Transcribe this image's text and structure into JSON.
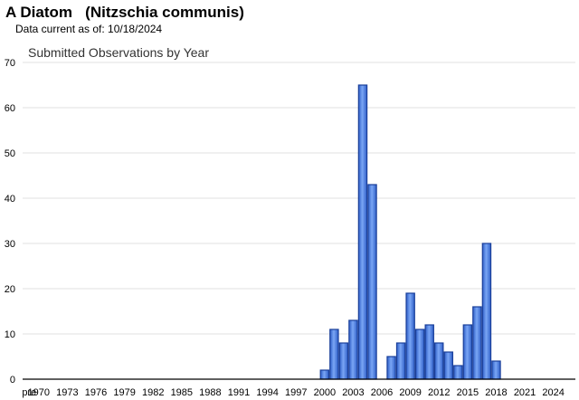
{
  "header": {
    "species_title": "A Diatom   (Nitzschia communis)",
    "data_current": "Data current as of: 10/18/2024"
  },
  "chart_data": {
    "type": "bar",
    "title": "Submitted Observations by Year",
    "xlabel": "",
    "ylabel": "",
    "ylim": [
      0,
      70
    ],
    "yticks": [
      0,
      10,
      20,
      30,
      40,
      50,
      60,
      70
    ],
    "grid": true,
    "bar_color": "#4a7fe0",
    "bar_border_color": "#1a3f9a",
    "x_tick_labels": [
      "pre",
      "1970",
      "1973",
      "1976",
      "1979",
      "1982",
      "1985",
      "1988",
      "1991",
      "1994",
      "1997",
      "2000",
      "2003",
      "2006",
      "2009",
      "2012",
      "2015",
      "2018",
      "2021",
      "2024"
    ],
    "categories": [
      "pre",
      "1970",
      "1971",
      "1972",
      "1973",
      "1974",
      "1975",
      "1976",
      "1977",
      "1978",
      "1979",
      "1980",
      "1981",
      "1982",
      "1983",
      "1984",
      "1985",
      "1986",
      "1987",
      "1988",
      "1989",
      "1990",
      "1991",
      "1992",
      "1993",
      "1994",
      "1995",
      "1996",
      "1997",
      "1998",
      "1999",
      "2000",
      "2001",
      "2002",
      "2003",
      "2004",
      "2005",
      "2006",
      "2007",
      "2008",
      "2009",
      "2010",
      "2011",
      "2012",
      "2013",
      "2014",
      "2015",
      "2016",
      "2017",
      "2018",
      "2019",
      "2020",
      "2021",
      "2022",
      "2023",
      "2024"
    ],
    "values": [
      0,
      0,
      0,
      0,
      0,
      0,
      0,
      0,
      0,
      0,
      0,
      0,
      0,
      0,
      0,
      0,
      0,
      0,
      0,
      0,
      0,
      0,
      0,
      0,
      0,
      0,
      0,
      0,
      0,
      0,
      0,
      2,
      11,
      8,
      13,
      65,
      43,
      0,
      5,
      8,
      19,
      11,
      12,
      8,
      6,
      3,
      12,
      16,
      30,
      4,
      0,
      0,
      0,
      0,
      0,
      0
    ]
  }
}
